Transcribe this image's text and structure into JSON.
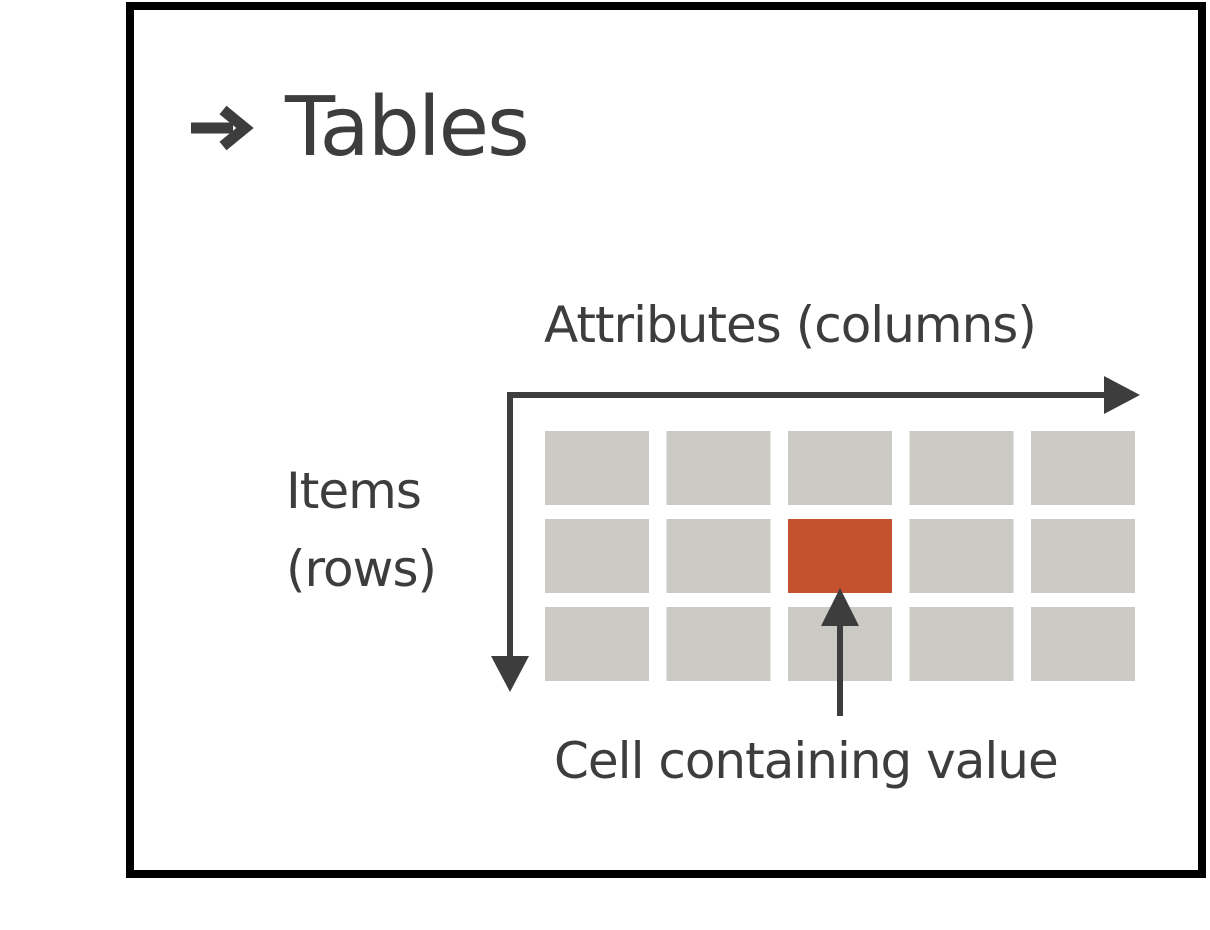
{
  "heading": {
    "text": "Tables",
    "arrow_icon": "right-arrow-icon"
  },
  "labels": {
    "columns": "Attributes (columns)",
    "rows_line1": "Items",
    "rows_line2": "(rows)",
    "cell": "Cell containing value"
  },
  "grid": {
    "rows": 3,
    "columns": 5,
    "highlighted_cell": {
      "row": 2,
      "column": 3
    }
  },
  "colors": {
    "frame": "#000000",
    "text": "#3d3d3d",
    "cell": "#cbcac5",
    "highlight": "#c5522e",
    "arrow": "#3d3d3d"
  }
}
